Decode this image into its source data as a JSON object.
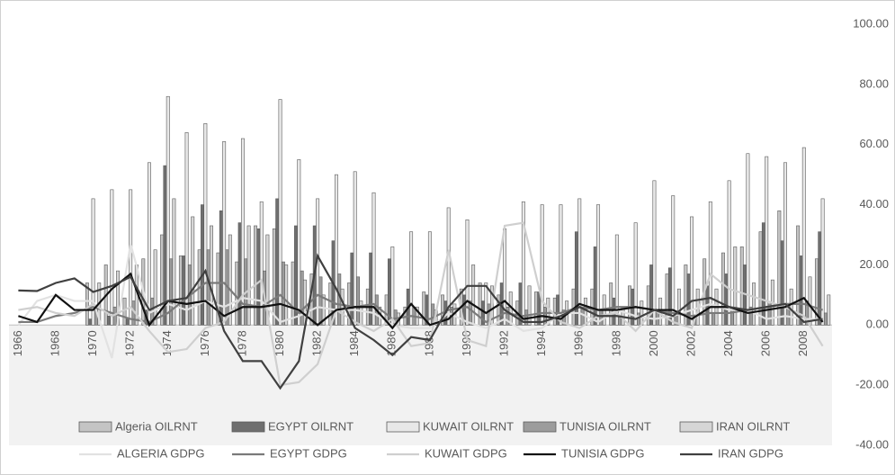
{
  "chart_data": {
    "type": "bar",
    "categories": [
      "1966",
      null,
      "1968",
      null,
      "1970",
      null,
      "1972",
      null,
      "1974",
      null,
      "1976",
      null,
      "1978",
      null,
      "1980",
      null,
      "1982",
      null,
      "1984",
      null,
      "1986",
      null,
      "1988",
      null,
      "1990",
      null,
      "1992",
      null,
      "1994",
      null,
      "1996",
      null,
      "1998",
      null,
      "2000",
      null,
      "2002",
      null,
      "2004",
      null,
      "2006",
      null,
      "2008",
      null
    ],
    "ylim": [
      -40,
      100
    ],
    "yticks": [
      {
        "value": -40,
        "label": "-40.00"
      },
      {
        "value": -20,
        "label": "-20.00"
      },
      {
        "value": 0,
        "label": "0.00"
      },
      {
        "value": 20,
        "label": "20.00"
      },
      {
        "value": 40,
        "label": "40.00"
      },
      {
        "value": 60,
        "label": "60.00"
      },
      {
        "value": 80,
        "label": "80.00"
      },
      {
        "value": 100,
        "label": "100.00"
      }
    ],
    "series": [
      {
        "name": "Algeria OILRNT",
        "type": "bar",
        "color": "#c4c4c4",
        "values": [
          null,
          null,
          null,
          null,
          14,
          20,
          9,
          22,
          30,
          23,
          25,
          24,
          21,
          33,
          32,
          21,
          17,
          14,
          14,
          12,
          10,
          6,
          11,
          10,
          12,
          14,
          10,
          8,
          11,
          9,
          12,
          12,
          14,
          13,
          13,
          17,
          20,
          22,
          24,
          26,
          31,
          38,
          33,
          22
        ]
      },
      {
        "name": "EGYPT OILRNT",
        "type": "bar",
        "color": "#6f6f6f",
        "values": [
          null,
          null,
          null,
          null,
          2,
          3,
          2,
          5,
          53,
          23,
          40,
          38,
          34,
          32,
          42,
          33,
          33,
          28,
          24,
          24,
          22,
          12,
          10,
          8,
          10,
          8,
          14,
          14,
          11,
          10,
          31,
          26,
          9,
          12,
          20,
          19,
          17,
          13,
          17,
          20,
          34,
          28,
          23,
          31
        ]
      },
      {
        "name": "KUWAIT OILRNT",
        "type": "bar",
        "color": "#e8e8e8",
        "values": [
          null,
          null,
          null,
          null,
          42,
          45,
          45,
          54,
          76,
          64,
          67,
          61,
          62,
          41,
          75,
          55,
          42,
          50,
          51,
          44,
          26,
          31,
          31,
          39,
          35,
          14,
          32,
          41,
          40,
          40,
          42,
          40,
          30,
          34,
          48,
          43,
          36,
          41,
          48,
          57,
          56,
          54,
          59,
          42
        ]
      },
      {
        "name": "TUNISIA OILRNT",
        "type": "bar",
        "color": "#9c9c9c",
        "values": [
          null,
          null,
          null,
          null,
          5,
          6,
          8,
          9,
          22,
          20,
          25,
          25,
          22,
          18,
          21,
          18,
          16,
          17,
          16,
          10,
          5,
          6,
          7,
          6,
          8,
          7,
          6,
          5,
          6,
          5,
          6,
          5,
          3,
          4,
          5,
          4,
          3,
          4,
          5,
          6,
          7,
          6,
          8,
          4
        ]
      },
      {
        "name": "IRAN OILRNT",
        "type": "bar",
        "color": "#d6d6d6",
        "values": [
          null,
          null,
          null,
          null,
          14,
          18,
          20,
          25,
          42,
          36,
          33,
          30,
          33,
          30,
          20,
          15,
          10,
          12,
          8,
          6,
          4,
          6,
          5,
          7,
          20,
          13,
          11,
          13,
          9,
          8,
          9,
          10,
          6,
          8,
          9,
          12,
          12,
          12,
          26,
          14,
          15,
          12,
          16,
          10
        ]
      },
      {
        "name": "ALGERIA GDPG",
        "type": "line",
        "color": "#e2e2e2",
        "values": [
          0,
          8,
          10,
          8,
          8,
          -11,
          27,
          4,
          7,
          5,
          8,
          6,
          9,
          8,
          1,
          3,
          6,
          5,
          5,
          4,
          0,
          -1,
          -1,
          4,
          1,
          -1,
          2,
          -2,
          -1,
          4,
          4,
          1,
          5,
          3,
          2,
          3,
          5,
          7,
          5,
          5,
          2,
          3,
          2,
          2
        ]
      },
      {
        "name": "EGYPT GDPG",
        "type": "line",
        "color": "#7a7a7a",
        "values": [
          1,
          1,
          3,
          4,
          6,
          4,
          2,
          1,
          4,
          9,
          14,
          14,
          7,
          6,
          10,
          4,
          10,
          7,
          6,
          7,
          2,
          3,
          2,
          5,
          6,
          1,
          4,
          3,
          4,
          4,
          6,
          5,
          6,
          6,
          5,
          4,
          3,
          4,
          4,
          5,
          6,
          7,
          7,
          5
        ]
      },
      {
        "name": "KUWAIT GDPG",
        "type": "line",
        "color": "#cfcfcf",
        "values": [
          5,
          6,
          4,
          3,
          7,
          3,
          6,
          -2,
          -9,
          -8,
          -1,
          1,
          10,
          15,
          -20,
          -19,
          -13,
          5,
          1,
          -2,
          2,
          -7,
          -6,
          25,
          -5,
          -7,
          33,
          34,
          8,
          1,
          -1,
          3,
          4,
          -2,
          5,
          1,
          -1,
          17,
          12,
          10,
          8,
          6,
          3,
          -7
        ]
      },
      {
        "name": "TUNISIA GDPG",
        "type": "line",
        "color": "#111111",
        "values": [
          3,
          1,
          10,
          5,
          5,
          12,
          17,
          0,
          8,
          7,
          8,
          3,
          6,
          6,
          7,
          5,
          0,
          5,
          6,
          6,
          -1,
          7,
          0,
          2,
          8,
          4,
          8,
          2,
          3,
          2,
          7,
          5,
          5,
          6,
          5,
          5,
          2,
          6,
          6,
          4,
          5,
          6,
          9,
          1
        ]
      },
      {
        "name": "IRAN GDPG",
        "type": "line",
        "color": "#404040",
        "values": [
          11.5,
          11.3,
          14,
          15.5,
          11,
          13,
          16,
          5,
          8,
          9,
          18,
          -2,
          -12,
          -12,
          -21,
          -12,
          23,
          12,
          -1,
          -5,
          -10,
          -4,
          -5,
          6,
          13,
          13,
          5,
          1,
          1,
          3,
          6,
          3,
          3,
          2,
          5,
          3,
          8,
          9,
          6,
          5,
          6,
          7,
          1,
          2
        ]
      }
    ]
  }
}
